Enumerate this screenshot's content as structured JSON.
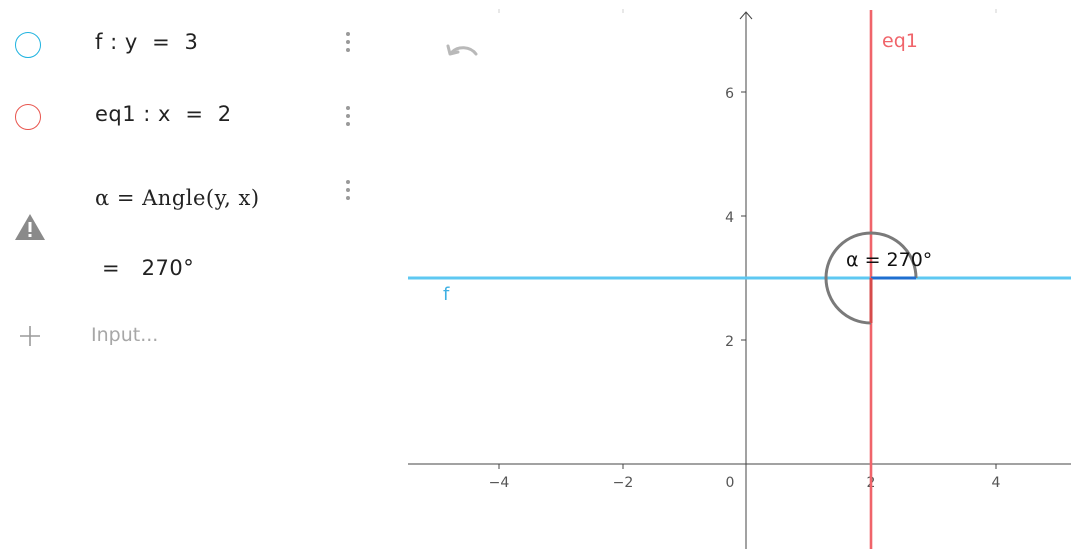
{
  "algebra": {
    "rows": [
      {
        "formula": "f : y  =  3",
        "color": "#1fb3e0"
      },
      {
        "formula": "eq1 : x  =  2",
        "color": "#e8554e"
      },
      {
        "formula": "α = Angle(y, x)",
        "value": "=   270°"
      }
    ],
    "input_placeholder": "Input..."
  },
  "graph": {
    "x_ticks": [
      "−4",
      "−2",
      "0",
      "2",
      "4"
    ],
    "y_ticks": [
      "6",
      "4",
      "2"
    ],
    "line_f_label": "f",
    "line_eq1_label": "eq1",
    "angle_label": "α = 270°",
    "colors": {
      "f": "#5ec8f2",
      "eq1": "#f0646a",
      "angle_arc": "#7a7a7a",
      "axis": "#444444"
    }
  },
  "icons": {
    "undo": "undo-icon",
    "warning": "warning-icon",
    "add": "plus-icon",
    "menu": "more-vert-icon"
  }
}
